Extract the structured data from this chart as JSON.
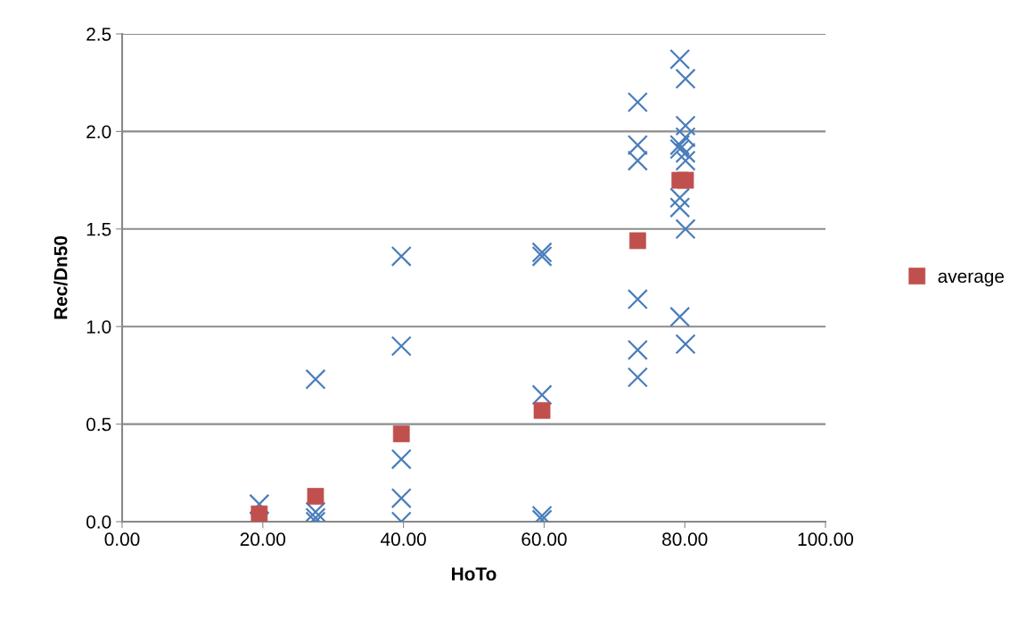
{
  "chart_data": {
    "type": "scatter",
    "xlabel": "HoTo",
    "ylabel": "Rec/Dn50",
    "xlim": [
      0,
      100
    ],
    "ylim": [
      0,
      2.5
    ],
    "xticks": [
      {
        "value": 0,
        "label": "0.00"
      },
      {
        "value": 20,
        "label": "20.00"
      },
      {
        "value": 40,
        "label": "40.00"
      },
      {
        "value": 60,
        "label": "60.00"
      },
      {
        "value": 80,
        "label": "80.00"
      },
      {
        "value": 100,
        "label": "100.00"
      }
    ],
    "yticks": [
      {
        "value": 0,
        "label": "0.0"
      },
      {
        "value": 0.5,
        "label": "0.5"
      },
      {
        "value": 1,
        "label": "1.0"
      },
      {
        "value": 1.5,
        "label": "1.5"
      },
      {
        "value": 2,
        "label": "2.0"
      },
      {
        "value": 2.5,
        "label": "2.5"
      }
    ],
    "grid": "y",
    "legend": "right",
    "series": [
      {
        "color": "#4a7ebb",
        "marker": "cross",
        "x": [
          19.5,
          19.5,
          27.5,
          27.5,
          27.5,
          27.5,
          39.7,
          39.7,
          39.7,
          39.7,
          39.7,
          59.7,
          59.7,
          59.7,
          59.7,
          59.7,
          73.3,
          73.3,
          73.3,
          73.3,
          73.3,
          73.3,
          79.3,
          79.3,
          79.3,
          79.3,
          79.3,
          79.3,
          80.1,
          80.1,
          80.1,
          80.1,
          80.1,
          80.1,
          80.1
        ],
        "values": [
          0.09,
          0.0,
          0.73,
          0.05,
          0.02,
          0.0,
          1.36,
          0.9,
          0.32,
          0.12,
          0.0,
          1.38,
          1.36,
          0.65,
          0.03,
          0.01,
          2.15,
          1.93,
          1.85,
          1.14,
          0.88,
          0.74,
          2.37,
          1.93,
          1.91,
          1.66,
          1.61,
          1.05,
          2.27,
          2.03,
          1.97,
          1.89,
          1.85,
          1.5,
          0.91
        ]
      },
      {
        "name": "average",
        "color": "#c0504d",
        "marker": "square",
        "x": [
          19.5,
          27.5,
          39.7,
          59.7,
          73.3,
          79.3,
          80.1
        ],
        "values": [
          0.04,
          0.13,
          0.45,
          0.57,
          1.44,
          1.75,
          1.75
        ]
      }
    ]
  }
}
